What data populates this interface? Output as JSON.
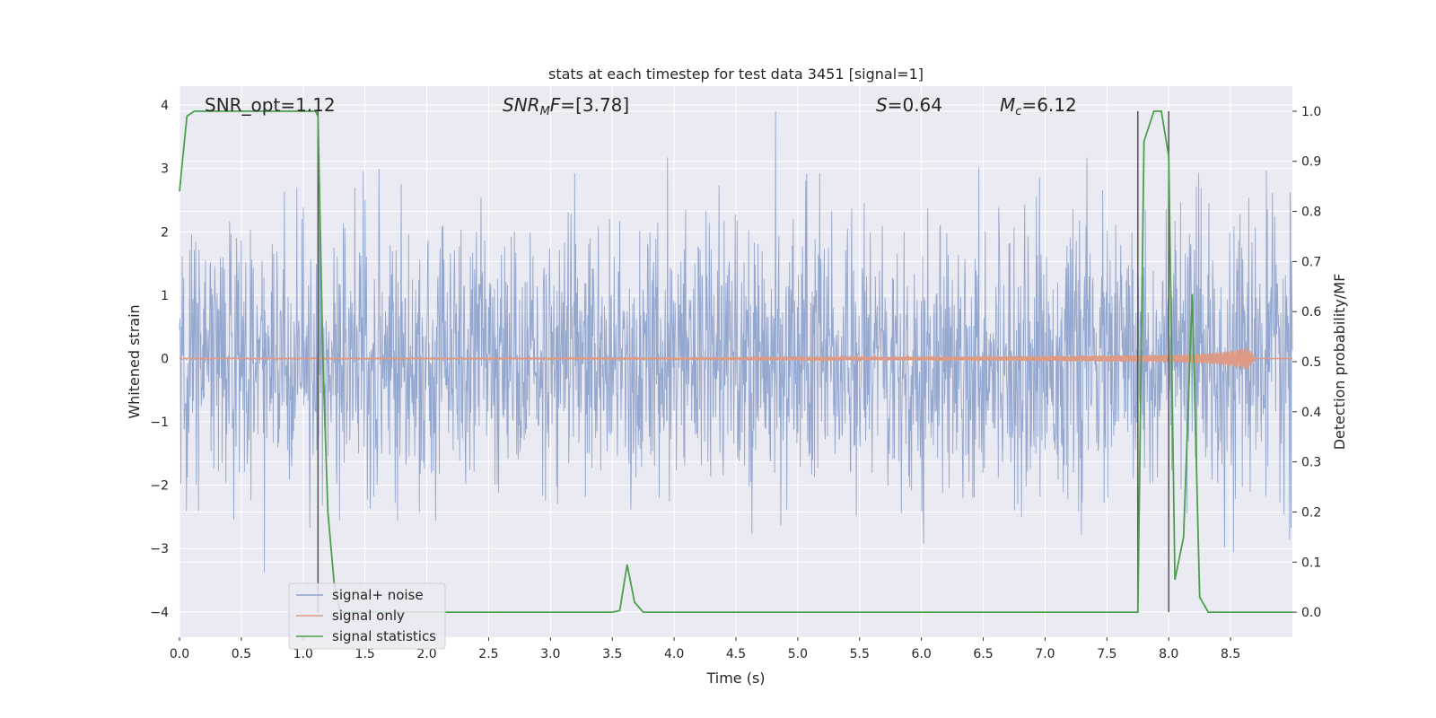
{
  "chart_data": {
    "type": "line",
    "title": "stats at each timestep for test data 3451 [signal=1]",
    "xlabel": "Time (s)",
    "ylabel_left": "Whitened strain",
    "ylabel_right": "Detection probability/MF",
    "xlim": [
      0.0,
      9.0
    ],
    "ylim_left": [
      -4.4,
      4.3
    ],
    "ylim_right": [
      -0.05,
      1.05
    ],
    "xticks": [
      "0.0",
      "0.5",
      "1.0",
      "1.5",
      "2.0",
      "2.5",
      "3.0",
      "3.5",
      "4.0",
      "4.5",
      "5.0",
      "5.5",
      "6.0",
      "6.5",
      "7.0",
      "7.5",
      "8.0",
      "8.5"
    ],
    "yticks_left": [
      "4",
      "3",
      "2",
      "1",
      "0",
      "−1",
      "−2",
      "−3",
      "−4"
    ],
    "yticks_right": [
      "1.0",
      "0.9",
      "0.8",
      "0.7",
      "0.6",
      "0.5",
      "0.4",
      "0.3",
      "0.2",
      "0.1",
      "0.0"
    ],
    "grid": true,
    "legend_position": "lower-left",
    "annotations": {
      "snr_opt": "SNR_opt=1.12",
      "snr_mf": "[3.78]",
      "s_val": "0.64",
      "mc_val": "6.12"
    },
    "series": [
      {
        "name": "signal+ noise",
        "color": "#8fa3cc",
        "axis": "left",
        "description_x_range": [
          0.0,
          9.0
        ]
      },
      {
        "name": "signal only",
        "color": "#dd9b85",
        "axis": "left",
        "envelope": {
          "t": [
            0.0,
            4.0,
            5.5,
            6.5,
            7.0,
            7.5,
            8.0,
            8.3,
            8.5,
            8.6,
            8.63,
            8.65,
            8.7
          ],
          "amp": [
            0.01,
            0.01,
            0.02,
            0.03,
            0.04,
            0.05,
            0.06,
            0.08,
            0.12,
            0.16,
            0.2,
            0.15,
            0.0
          ]
        }
      },
      {
        "name": "signal statistics",
        "color": "#4c9f4c",
        "axis": "right",
        "x": [
          0.0,
          0.06,
          0.12,
          0.2,
          0.4,
          0.6,
          0.8,
          1.0,
          1.1,
          1.12,
          1.16,
          1.2,
          1.25,
          1.3,
          1.5,
          2.0,
          2.5,
          3.0,
          3.5,
          3.56,
          3.62,
          3.68,
          3.75,
          4.0,
          5.0,
          6.0,
          7.0,
          7.5,
          7.75,
          7.8,
          7.88,
          7.94,
          8.0,
          8.05,
          8.12,
          8.19,
          8.25,
          8.32,
          8.5,
          8.7,
          9.0
        ],
        "y": [
          0.84,
          0.99,
          1.0,
          1.0,
          1.0,
          1.0,
          1.0,
          1.0,
          1.0,
          0.99,
          0.5,
          0.2,
          0.06,
          0.0,
          0.0,
          0.0,
          0.0,
          0.0,
          0.0,
          0.003,
          0.095,
          0.02,
          0.0,
          0.0,
          0.0,
          0.0,
          0.0,
          0.0,
          0.0,
          0.94,
          1.0,
          1.0,
          0.91,
          0.065,
          0.15,
          0.635,
          0.03,
          0.0,
          0.0,
          0.0,
          0.0
        ]
      }
    ],
    "vlines": [
      1.12,
      7.75,
      8.0
    ],
    "vline_color": "#555555"
  }
}
